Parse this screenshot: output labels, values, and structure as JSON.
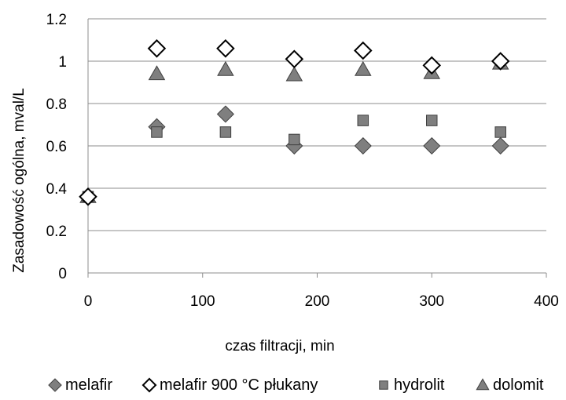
{
  "chart_data": {
    "type": "scatter",
    "title": "",
    "xlabel": "czas filtracji, min",
    "ylabel": "Zasadowość ogólna, mval/L",
    "xlim": [
      0,
      400
    ],
    "ylim": [
      0,
      1.2
    ],
    "xticks": [
      "0",
      "100",
      "200",
      "300",
      "400"
    ],
    "yticks": [
      "0",
      "0.2",
      "0.4",
      "0.6",
      "0.8",
      "1",
      "1.2"
    ],
    "grid": "horizontal",
    "legend_position": "bottom",
    "series": [
      {
        "name": "melafir",
        "marker": "diamond-filled",
        "color": "#7f7f7f",
        "points": [
          [
            0,
            0.36
          ],
          [
            60,
            0.69
          ],
          [
            120,
            0.75
          ],
          [
            180,
            0.6
          ],
          [
            240,
            0.6
          ],
          [
            300,
            0.6
          ],
          [
            360,
            0.6
          ]
        ]
      },
      {
        "name": "melafir 900 °C płukany",
        "marker": "diamond-open",
        "color": "#ffffff",
        "points": [
          [
            0,
            0.36
          ],
          [
            60,
            1.06
          ],
          [
            120,
            1.06
          ],
          [
            180,
            1.01
          ],
          [
            240,
            1.05
          ],
          [
            300,
            0.98
          ],
          [
            360,
            1.0
          ]
        ]
      },
      {
        "name": "hydrolit",
        "marker": "square",
        "color": "#7f7f7f",
        "points": [
          [
            0,
            0.36
          ],
          [
            60,
            0.665
          ],
          [
            120,
            0.665
          ],
          [
            180,
            0.63
          ],
          [
            240,
            0.72
          ],
          [
            300,
            0.72
          ],
          [
            360,
            0.665
          ]
        ]
      },
      {
        "name": "dolomit",
        "marker": "triangle",
        "color": "#7f7f7f",
        "points": [
          [
            0,
            0.36
          ],
          [
            60,
            0.94
          ],
          [
            120,
            0.96
          ],
          [
            180,
            0.935
          ],
          [
            240,
            0.96
          ],
          [
            300,
            0.945
          ],
          [
            360,
            0.99
          ]
        ]
      }
    ]
  }
}
